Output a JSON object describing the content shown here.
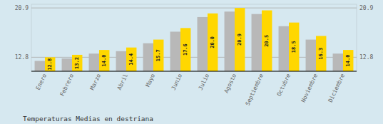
{
  "chart_data": {
    "type": "bar",
    "title": "Temperaturas Medias en destriana",
    "categories": [
      "Enero",
      "Febrero",
      "Marzo",
      "Abril",
      "Mayo",
      "Junio",
      "Julio",
      "Agosto",
      "Septiembre",
      "Octubre",
      "Noviembre",
      "Diciembre"
    ],
    "series": [
      {
        "color": "#B8B8B8",
        "values": [
          12.2,
          12.6,
          13.4,
          13.8,
          15.1,
          17.0,
          19.4,
          20.3,
          19.9,
          17.9,
          15.7,
          13.4
        ]
      },
      {
        "color": "#FFD700",
        "data_labels": true,
        "values": [
          12.8,
          13.2,
          14.0,
          14.4,
          15.7,
          17.6,
          20.0,
          20.9,
          20.5,
          18.5,
          16.3,
          14.0
        ],
        "value_labels": [
          "12.8",
          "13.2",
          "14.0",
          "14.4",
          "15.7",
          "17.6",
          "20.0",
          "20.9",
          "20.5",
          "18.5",
          "16.3",
          "14.0"
        ]
      }
    ],
    "ylim": [
      10.5,
      21.5
    ],
    "yticks": [
      12.8,
      20.9
    ],
    "y2lim": [
      10.5,
      21.5
    ],
    "y2ticks": [
      12.8,
      20.9
    ],
    "grid": true
  }
}
